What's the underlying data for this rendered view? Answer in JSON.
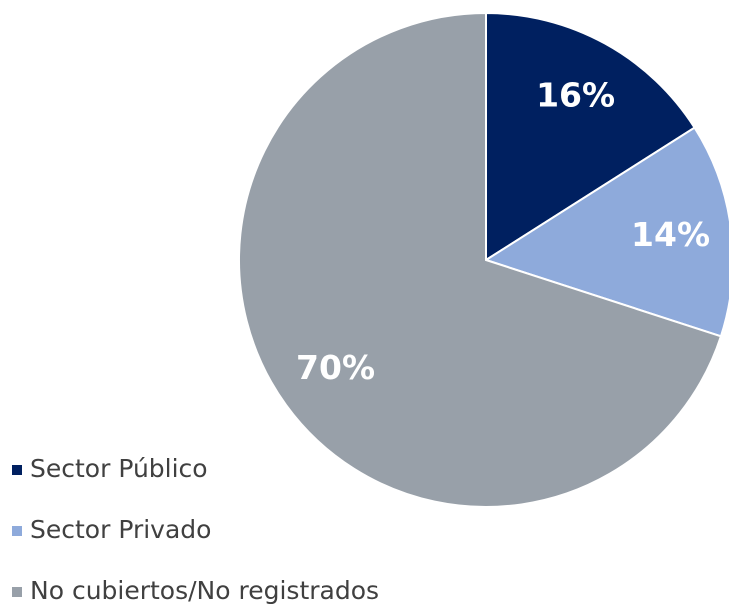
{
  "chart_data": {
    "type": "pie",
    "categories": [
      "Sector Público",
      "Sector Privado",
      "No cubiertos/No registrados"
    ],
    "values": [
      16,
      14,
      70
    ],
    "value_labels": [
      "16%",
      "14%",
      "70%"
    ],
    "colors": [
      "#002060",
      "#8eaadb",
      "#98a0a9"
    ],
    "legend": "bottom-left"
  }
}
